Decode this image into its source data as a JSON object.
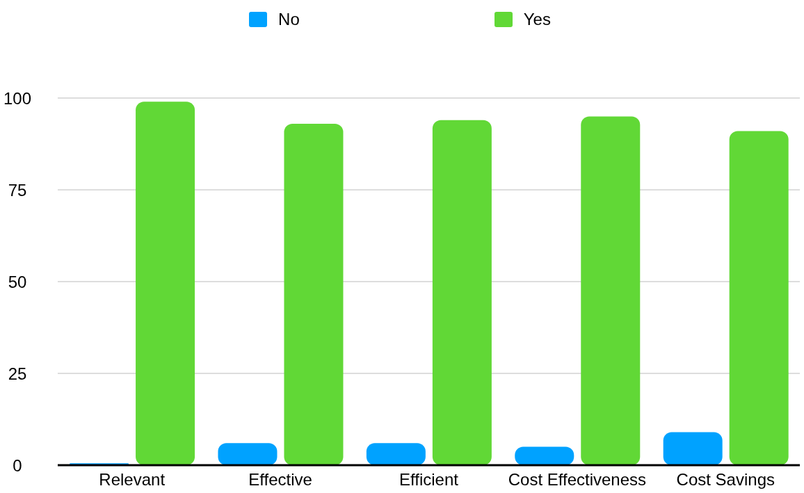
{
  "chart_data": {
    "type": "bar",
    "categories": [
      "Relevant",
      "Effective",
      "Efficient",
      "Cost Effectiveness",
      "Cost Savings"
    ],
    "series": [
      {
        "name": "No",
        "color": "#00a2ff",
        "values": [
          0.5,
          6,
          6,
          5,
          9
        ]
      },
      {
        "name": "Yes",
        "color": "#61d836",
        "values": [
          99,
          93,
          94,
          95,
          91
        ]
      }
    ],
    "ylim": [
      0,
      100
    ],
    "yticks": [
      0,
      25,
      50,
      75,
      100
    ],
    "grid": "y",
    "legend": "top"
  }
}
